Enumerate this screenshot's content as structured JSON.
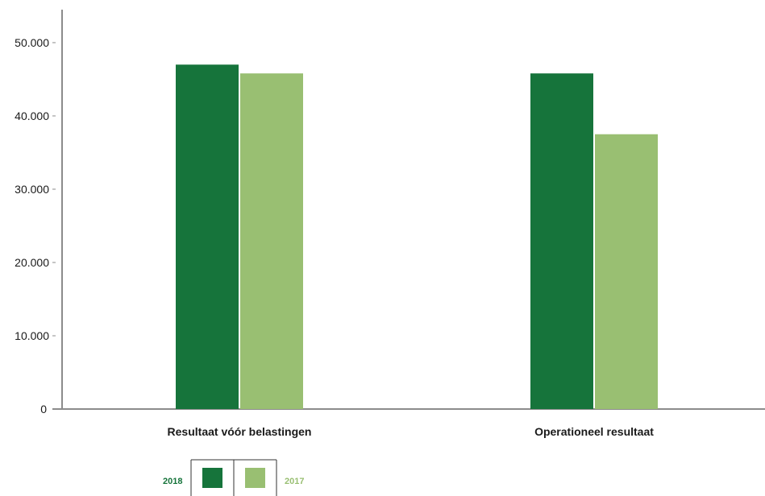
{
  "chart_data": {
    "type": "bar",
    "categories": [
      "Resultaat vóór belastingen",
      "Operationeel resultaat"
    ],
    "series": [
      {
        "name": "2018",
        "color": "#16743b",
        "values": [
          47000,
          45800
        ]
      },
      {
        "name": "2017",
        "color": "#99bf72",
        "values": [
          45800,
          37500
        ]
      }
    ],
    "yticks": [
      "0",
      "10.000",
      "20.000",
      "30.000",
      "40.000",
      "50.000"
    ],
    "ytick_values": [
      0,
      10000,
      20000,
      30000,
      40000,
      50000
    ],
    "ylim": [
      0,
      54500
    ],
    "grid": false,
    "legend_position": "bottom-left",
    "axis_color": "#8c8c8c"
  }
}
